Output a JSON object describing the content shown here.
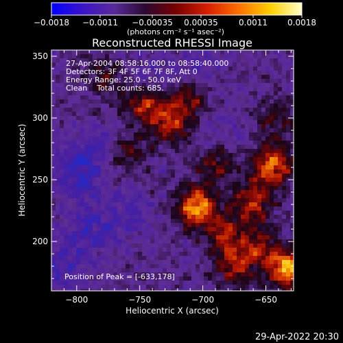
{
  "chart_data": {
    "type": "heatmap",
    "title": "Reconstructed RHESSI Image",
    "xlabel": "Heliocentric X (arcsec)",
    "ylabel": "Heliocentric Y (arcsec)",
    "xlim": [
      -820,
      -628
    ],
    "ylim": [
      160,
      355
    ],
    "x_ticks": [
      -800,
      -750,
      -700,
      -650
    ],
    "x_tick_labels": [
      "−800",
      "−750",
      "−700",
      "−650"
    ],
    "y_ticks": [
      200,
      250,
      300,
      350
    ],
    "y_tick_labels": [
      "200",
      "250",
      "300",
      "350"
    ],
    "colorbar": {
      "min": -0.0018,
      "max": 0.0018,
      "ticks": [
        -0.0018,
        -0.0011,
        -0.00035,
        0.00035,
        0.0011,
        0.0018
      ],
      "tick_labels": [
        "−0.0018",
        "−0.0011",
        "−0.00035",
        "0.00035",
        "0.0011",
        "0.0018"
      ],
      "unit_label": "(photons cm⁻² s⁻¹ asec⁻²)",
      "colors": [
        "#0000ff",
        "#3c14c8",
        "#5a2a9a",
        "#2a0a30",
        "#7a0000",
        "#d82000",
        "#ff7000",
        "#ffd000",
        "#ffffc8"
      ]
    },
    "annotations": [
      "27-Apr-2004 08:58:16.000 to 08:58:40.000",
      "Detectors: 3F 4F 5F 6F 7F 8F, Att 0",
      "Energy Range: 25.0 - 50.0 keV",
      "Clean    Total counts: 685."
    ],
    "peak_label": "Position of Peak = [-633,178]",
    "peak": {
      "x": -633,
      "y": 178
    },
    "hot_spots": [
      {
        "x": -705,
        "y": 228,
        "v": 1.0
      },
      {
        "x": -645,
        "y": 262,
        "v": 0.85
      },
      {
        "x": -633,
        "y": 178,
        "v": 1.0
      },
      {
        "x": -725,
        "y": 295,
        "v": 0.65
      },
      {
        "x": -745,
        "y": 312,
        "v": 0.7
      },
      {
        "x": -690,
        "y": 262,
        "v": 0.45
      },
      {
        "x": -682,
        "y": 205,
        "v": 0.6
      },
      {
        "x": -660,
        "y": 232,
        "v": 0.65
      },
      {
        "x": -675,
        "y": 178,
        "v": 0.55
      },
      {
        "x": -655,
        "y": 195,
        "v": 0.5
      },
      {
        "x": -760,
        "y": 272,
        "v": 0.45
      },
      {
        "x": -710,
        "y": 315,
        "v": 0.45
      },
      {
        "x": -778,
        "y": 330,
        "v": 0.35
      },
      {
        "x": -642,
        "y": 300,
        "v": 0.35
      }
    ],
    "cold_spots": [
      {
        "x": -800,
        "y": 255,
        "v": 0.6
      },
      {
        "x": -790,
        "y": 210,
        "v": 0.5
      },
      {
        "x": -785,
        "y": 275,
        "v": 0.45
      },
      {
        "x": -760,
        "y": 220,
        "v": 0.4
      },
      {
        "x": -740,
        "y": 330,
        "v": 0.35
      },
      {
        "x": -700,
        "y": 345,
        "v": 0.3
      },
      {
        "x": -810,
        "y": 180,
        "v": 0.45
      },
      {
        "x": -690,
        "y": 290,
        "v": 0.25
      }
    ]
  },
  "timestamp": "29-Apr-2022 20:30"
}
